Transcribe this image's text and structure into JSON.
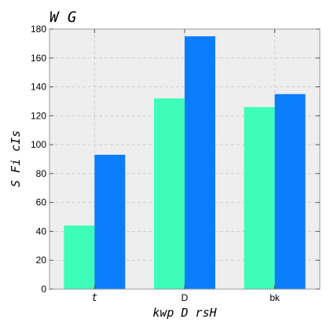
{
  "chart_data": {
    "type": "bar",
    "title": "W  G",
    "xlabel": "kwp D rsH",
    "ylabel": "S Fi cIs",
    "categories": [
      "t",
      "D",
      "bk"
    ],
    "series": [
      {
        "values": [
          44,
          132,
          126
        ],
        "color": "#3dfdb8"
      },
      {
        "values": [
          93,
          175,
          135
        ],
        "color": "#0a7dfd"
      }
    ],
    "ylim": [
      0,
      180
    ],
    "yticks": [
      0,
      20,
      40,
      60,
      80,
      100,
      120,
      140,
      160,
      180
    ],
    "grid": true,
    "background": "#eeeeee"
  }
}
